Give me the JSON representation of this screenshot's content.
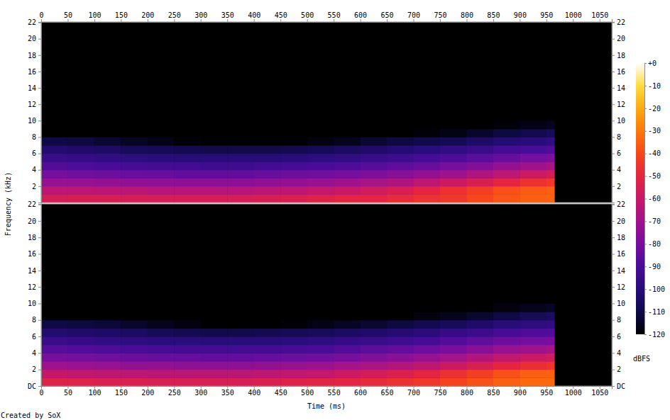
{
  "chart_data": [
    {
      "type": "heatmap",
      "y_label": "Frequency (kHz)",
      "xlim": [
        0,
        1073
      ],
      "xticks": [
        0,
        50,
        100,
        150,
        200,
        250,
        300,
        350,
        400,
        450,
        500,
        550,
        600,
        650,
        700,
        750,
        800,
        850,
        900,
        950,
        1000,
        1050
      ],
      "ylim": [
        0,
        22.05
      ],
      "yticks": [
        2,
        4,
        6,
        8,
        10,
        12,
        14,
        16,
        18,
        20,
        22
      ],
      "x_bins": [
        0,
        50,
        100,
        150,
        200,
        250,
        300,
        350,
        400,
        450,
        500,
        550,
        600,
        650,
        700,
        750,
        800,
        850,
        900,
        950,
        965
      ],
      "y_bins": [
        0,
        1,
        2,
        3,
        4,
        5,
        6,
        7,
        8,
        9,
        10
      ],
      "z": [
        [
          -55,
          -54,
          -54,
          -55,
          -55,
          -55,
          -55,
          -55,
          -54,
          -53,
          -52,
          -50,
          -50,
          -48,
          -46,
          -44,
          -40,
          -37,
          -35,
          -34
        ],
        [
          -62,
          -62,
          -63,
          -63,
          -64,
          -64,
          -64,
          -64,
          -63,
          -62,
          -60,
          -59,
          -57,
          -54,
          -50,
          -46,
          -42,
          -38,
          -36,
          -35
        ],
        [
          -72,
          -72,
          -73,
          -74,
          -74,
          -75,
          -75,
          -75,
          -74,
          -73,
          -72,
          -70,
          -68,
          -66,
          -62,
          -58,
          -54,
          -50,
          -46,
          -44
        ],
        [
          -80,
          -81,
          -82,
          -83,
          -83,
          -84,
          -84,
          -84,
          -83,
          -82,
          -81,
          -80,
          -78,
          -76,
          -73,
          -70,
          -66,
          -62,
          -58,
          -56
        ],
        [
          -88,
          -89,
          -90,
          -91,
          -92,
          -92,
          -93,
          -93,
          -92,
          -91,
          -90,
          -89,
          -87,
          -85,
          -83,
          -80,
          -77,
          -73,
          -70,
          -68
        ],
        [
          -95,
          -96,
          -97,
          -98,
          -99,
          -100,
          -100,
          -100,
          -100,
          -99,
          -98,
          -97,
          -95,
          -93,
          -91,
          -89,
          -86,
          -83,
          -80,
          -78
        ],
        [
          -102,
          -103,
          -104,
          -106,
          -107,
          -108,
          -109,
          -109,
          -109,
          -108,
          -107,
          -105,
          -103,
          -101,
          -99,
          -97,
          -95,
          -92,
          -90,
          -88
        ],
        [
          -110,
          -111,
          -113,
          -115,
          -117,
          -119,
          -121,
          -122,
          -121,
          -120,
          -118,
          -116,
          -113,
          -111,
          -109,
          -107,
          -104,
          -101,
          -99,
          -97
        ],
        [
          -123,
          -124,
          -125,
          -126,
          -127,
          -128,
          -128,
          -128,
          -128,
          -127,
          -126,
          -125,
          -124,
          -122,
          -119,
          -117,
          -114,
          -111,
          -108,
          -106
        ],
        [
          -128,
          -128,
          -128,
          -128,
          -128,
          -128,
          -128,
          -128,
          -128,
          -128,
          -128,
          -128,
          -128,
          -127,
          -126,
          -124,
          -122,
          -119,
          -117,
          -116
        ]
      ],
      "colorbar": {
        "range": [
          -120,
          0
        ],
        "ticks": [
          {
            "value": 0,
            "label": "+0"
          },
          -10,
          -20,
          -30,
          -40,
          -50,
          -60,
          -70,
          -80,
          -90,
          -100,
          -110,
          -120
        ],
        "label": "dBFS"
      }
    },
    {
      "type": "heatmap",
      "x_label": "Time (ms)",
      "xlim": [
        0,
        1073
      ],
      "xticks": [
        0,
        50,
        100,
        150,
        200,
        250,
        300,
        350,
        400,
        450,
        500,
        550,
        600,
        650,
        700,
        750,
        800,
        850,
        900,
        950,
        1000,
        1050
      ],
      "ylim": [
        0,
        22.05
      ],
      "yticks": [
        {
          "value": 0,
          "label": "DC"
        },
        2,
        4,
        6,
        8,
        10,
        12,
        14,
        16,
        18,
        20,
        22
      ],
      "x_bins": [
        0,
        50,
        100,
        150,
        200,
        250,
        300,
        350,
        400,
        450,
        500,
        550,
        600,
        650,
        700,
        750,
        800,
        850,
        900,
        950,
        965
      ],
      "y_bins": [
        0,
        1,
        2,
        3,
        4,
        5,
        6,
        7,
        8,
        9,
        10
      ],
      "z": [
        [
          -52,
          -52,
          -53,
          -53,
          -54,
          -54,
          -54,
          -54,
          -53,
          -52,
          -51,
          -50,
          -48,
          -46,
          -44,
          -41,
          -38,
          -35,
          -33,
          -33
        ],
        [
          -60,
          -61,
          -62,
          -62,
          -63,
          -63,
          -63,
          -63,
          -62,
          -61,
          -60,
          -58,
          -56,
          -53,
          -50,
          -46,
          -42,
          -38,
          -35,
          -35
        ],
        [
          -70,
          -71,
          -72,
          -73,
          -73,
          -74,
          -74,
          -74,
          -73,
          -72,
          -71,
          -69,
          -67,
          -65,
          -62,
          -58,
          -54,
          -50,
          -47,
          -45
        ],
        [
          -79,
          -80,
          -81,
          -82,
          -83,
          -83,
          -84,
          -84,
          -83,
          -82,
          -81,
          -79,
          -77,
          -75,
          -72,
          -69,
          -65,
          -61,
          -58,
          -57
        ],
        [
          -87,
          -88,
          -89,
          -90,
          -91,
          -92,
          -92,
          -92,
          -92,
          -91,
          -90,
          -88,
          -86,
          -84,
          -82,
          -79,
          -76,
          -72,
          -70,
          -68
        ],
        [
          -95,
          -96,
          -97,
          -98,
          -99,
          -99,
          -100,
          -100,
          -100,
          -99,
          -98,
          -96,
          -95,
          -93,
          -91,
          -88,
          -85,
          -82,
          -80,
          -79
        ],
        [
          -102,
          -103,
          -104,
          -105,
          -107,
          -108,
          -109,
          -109,
          -108,
          -107,
          -106,
          -105,
          -103,
          -101,
          -99,
          -96,
          -94,
          -91,
          -89,
          -88
        ],
        [
          -110,
          -111,
          -112,
          -114,
          -116,
          -118,
          -120,
          -121,
          -120,
          -119,
          -117,
          -115,
          -113,
          -111,
          -108,
          -106,
          -103,
          -100,
          -98,
          -97
        ],
        [
          -122,
          -123,
          -124,
          -125,
          -126,
          -127,
          -128,
          -128,
          -127,
          -126,
          -125,
          -124,
          -123,
          -121,
          -118,
          -116,
          -113,
          -110,
          -107,
          -105
        ],
        [
          -128,
          -128,
          -128,
          -128,
          -128,
          -128,
          -128,
          -128,
          -128,
          -128,
          -128,
          -128,
          -127,
          -126,
          -125,
          -123,
          -121,
          -118,
          -116,
          -115
        ]
      ],
      "annotations": [
        "Created by SoX"
      ]
    }
  ]
}
